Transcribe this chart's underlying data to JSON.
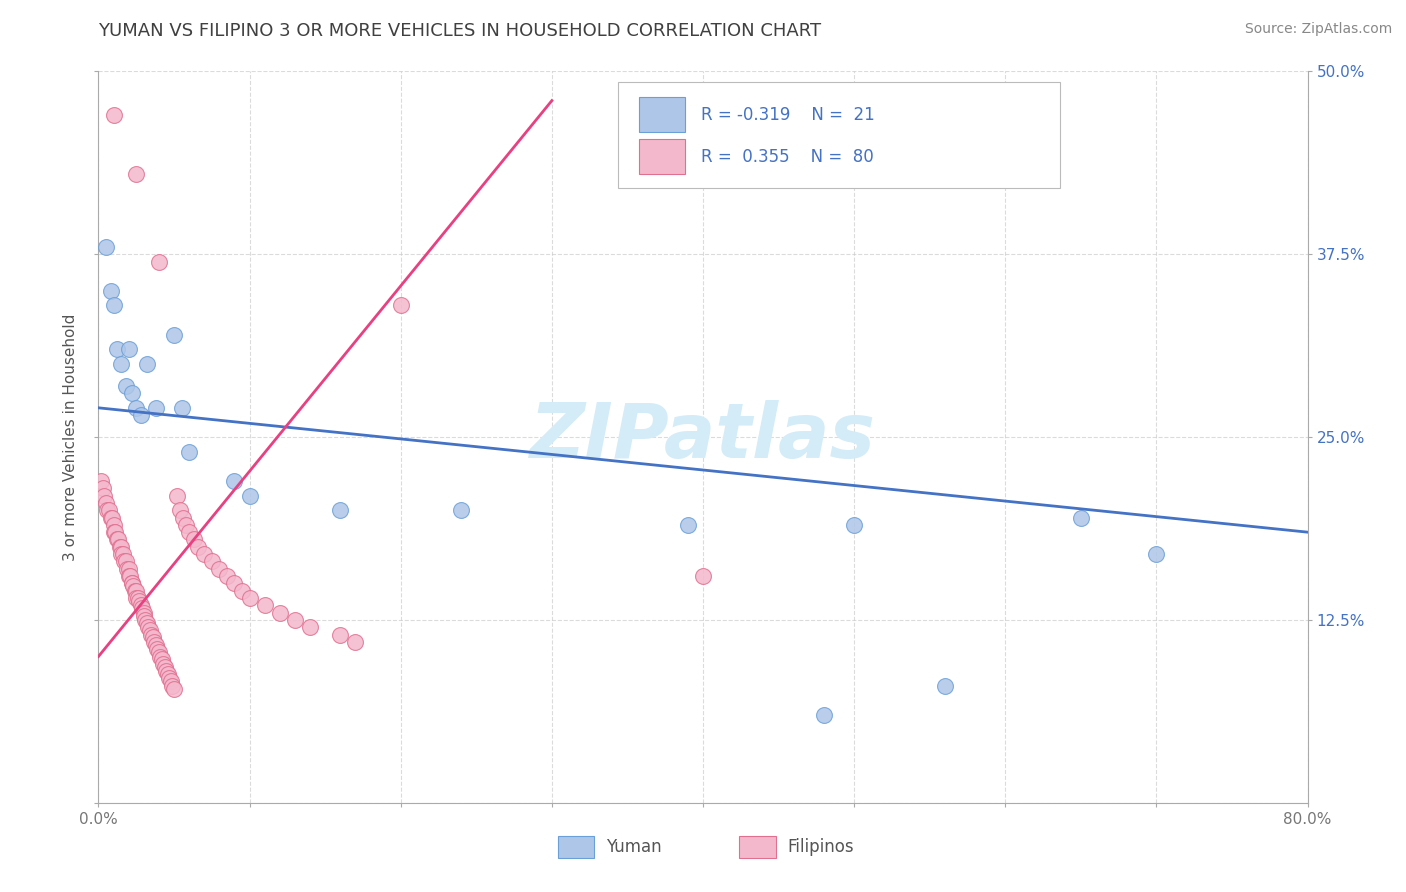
{
  "title": "YUMAN VS FILIPINO 3 OR MORE VEHICLES IN HOUSEHOLD CORRELATION CHART",
  "source_text": "Source: ZipAtlas.com",
  "ylabel": "3 or more Vehicles in Household",
  "xlim": [
    0.0,
    0.8
  ],
  "ylim": [
    0.0,
    0.5
  ],
  "yuman_color": "#aec6e8",
  "filipino_color": "#f4b8cc",
  "yuman_edge": "#6a9fd8",
  "filipino_edge": "#e07090",
  "trend_yuman_color": "#4472c4",
  "trend_filipino_color": "#e84080",
  "watermark": "ZIPatlas",
  "watermark_color": "#d4ecf7",
  "background_color": "#ffffff",
  "grid_color": "#cccccc",
  "title_color": "#404040",
  "yuman_x": [
    0.005,
    0.008,
    0.01,
    0.012,
    0.015,
    0.018,
    0.02,
    0.022,
    0.025,
    0.028,
    0.032,
    0.038,
    0.05,
    0.055,
    0.06,
    0.09,
    0.1,
    0.16,
    0.24,
    0.39,
    0.5,
    0.48,
    0.56,
    0.65,
    0.7
  ],
  "yuman_y": [
    0.38,
    0.35,
    0.34,
    0.31,
    0.3,
    0.285,
    0.31,
    0.28,
    0.27,
    0.265,
    0.3,
    0.27,
    0.32,
    0.27,
    0.24,
    0.22,
    0.21,
    0.2,
    0.2,
    0.19,
    0.19,
    0.06,
    0.08,
    0.195,
    0.17
  ],
  "filipino_x": [
    0.002,
    0.003,
    0.004,
    0.005,
    0.006,
    0.007,
    0.008,
    0.009,
    0.01,
    0.01,
    0.011,
    0.012,
    0.013,
    0.014,
    0.015,
    0.015,
    0.016,
    0.017,
    0.018,
    0.019,
    0.02,
    0.02,
    0.021,
    0.022,
    0.022,
    0.023,
    0.024,
    0.025,
    0.025,
    0.026,
    0.027,
    0.028,
    0.029,
    0.03,
    0.03,
    0.031,
    0.032,
    0.033,
    0.034,
    0.035,
    0.036,
    0.037,
    0.038,
    0.039,
    0.04,
    0.041,
    0.042,
    0.043,
    0.044,
    0.045,
    0.046,
    0.047,
    0.048,
    0.049,
    0.05,
    0.052,
    0.054,
    0.056,
    0.058,
    0.06,
    0.063,
    0.066,
    0.07,
    0.075,
    0.08,
    0.085,
    0.09,
    0.095,
    0.1,
    0.11,
    0.12,
    0.13,
    0.14,
    0.16,
    0.04,
    0.17,
    0.01,
    0.025,
    0.4,
    0.2
  ],
  "filipino_y": [
    0.22,
    0.215,
    0.21,
    0.205,
    0.2,
    0.2,
    0.195,
    0.195,
    0.19,
    0.185,
    0.185,
    0.18,
    0.18,
    0.175,
    0.175,
    0.17,
    0.17,
    0.165,
    0.165,
    0.16,
    0.16,
    0.155,
    0.155,
    0.15,
    0.15,
    0.148,
    0.145,
    0.145,
    0.14,
    0.14,
    0.138,
    0.135,
    0.133,
    0.13,
    0.128,
    0.125,
    0.123,
    0.12,
    0.118,
    0.115,
    0.113,
    0.11,
    0.108,
    0.105,
    0.103,
    0.1,
    0.098,
    0.095,
    0.093,
    0.09,
    0.088,
    0.085,
    0.083,
    0.08,
    0.078,
    0.21,
    0.2,
    0.195,
    0.19,
    0.185,
    0.18,
    0.175,
    0.17,
    0.165,
    0.16,
    0.155,
    0.15,
    0.145,
    0.14,
    0.135,
    0.13,
    0.125,
    0.12,
    0.115,
    0.37,
    0.11,
    0.47,
    0.43,
    0.155,
    0.34
  ],
  "trend_yuman_x0": 0.0,
  "trend_yuman_x1": 0.8,
  "trend_yuman_y0": 0.27,
  "trend_yuman_y1": 0.185,
  "trend_filipino_x0": 0.0,
  "trend_filipino_x1": 0.3,
  "trend_filipino_y0": 0.1,
  "trend_filipino_y1": 0.48
}
